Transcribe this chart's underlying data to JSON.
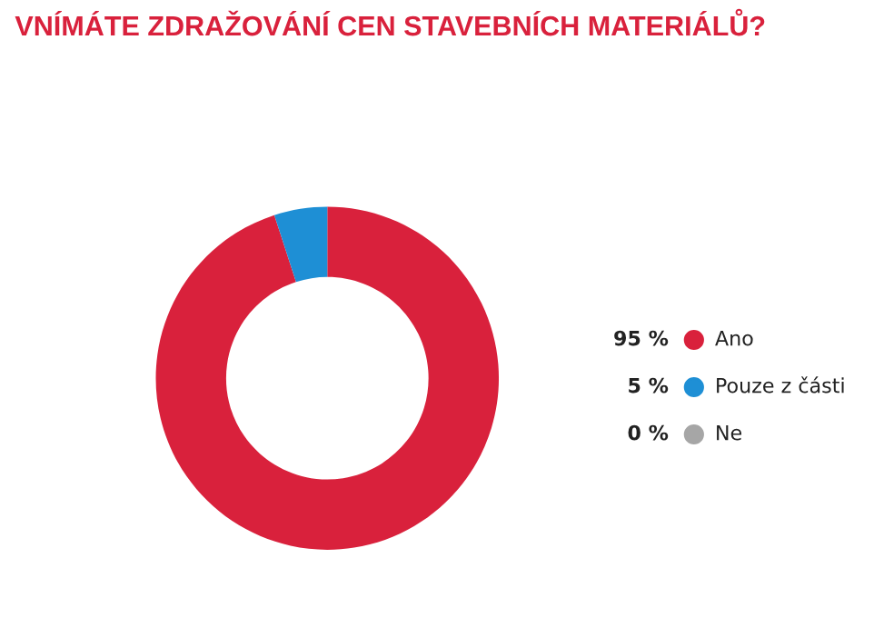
{
  "chart_data": {
    "type": "donut",
    "title": "VNÍMÁTE ZDRAŽOVÁNÍ CEN STAVEBNÍCH MATERIÁLŮ?",
    "categories": [
      "Ano",
      "Pouze z části",
      "Ne"
    ],
    "values": [
      95,
      5,
      0
    ],
    "colors": [
      "#d9213c",
      "#1e8fd5",
      "#a6a6a6"
    ],
    "value_labels": [
      "95 %",
      "5 %",
      "0 %"
    ],
    "legend": "right"
  }
}
